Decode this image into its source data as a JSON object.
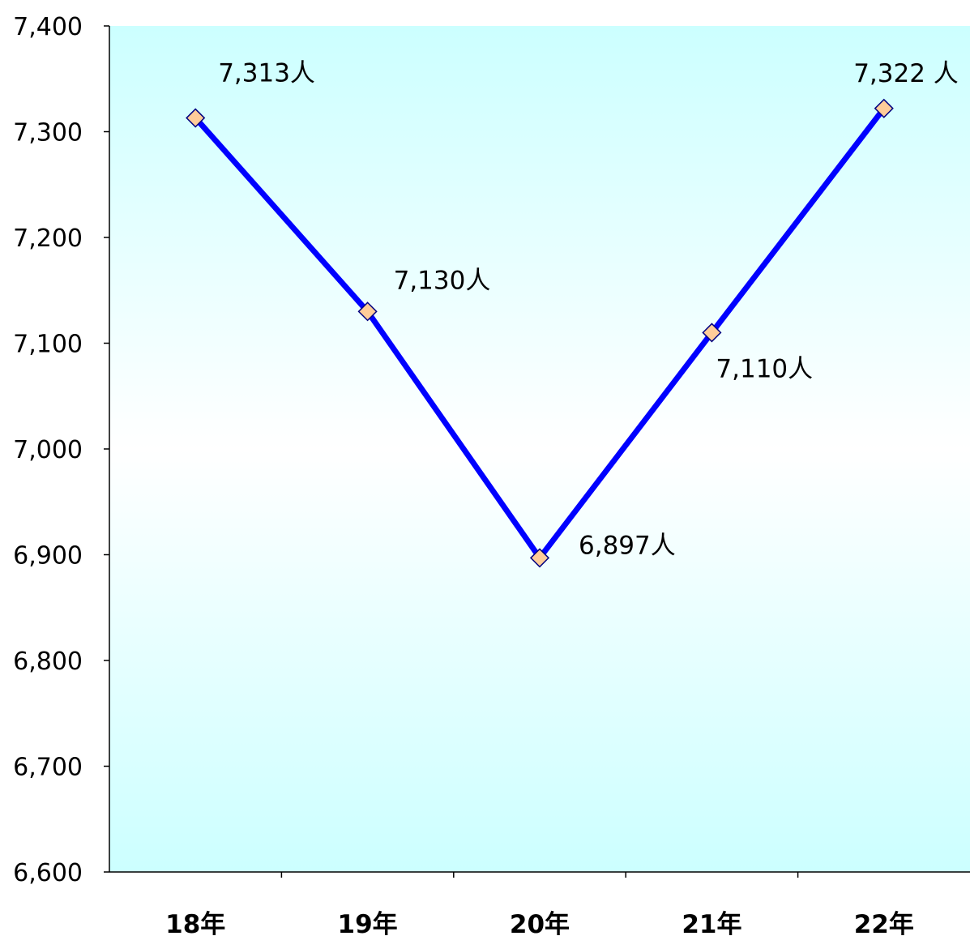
{
  "chart_data": {
    "type": "line",
    "categories": [
      "18年",
      "19年",
      "20年",
      "21年",
      "22年"
    ],
    "series": [
      {
        "values": [
          7313,
          7130,
          6897,
          7110,
          7322
        ],
        "data_labels": [
          "7,313人",
          "7,130人",
          "6,897人",
          "7,110人",
          "7,322 人"
        ]
      }
    ],
    "ylim": [
      6600,
      7400
    ],
    "yticks": [
      6600,
      6700,
      6800,
      6900,
      7000,
      7100,
      7200,
      7300,
      7400
    ],
    "ytick_labels": [
      "6,600",
      "6,700",
      "6,800",
      "6,900",
      "7,000",
      "7,100",
      "7,200",
      "7,300",
      "7,400"
    ],
    "legend": "none",
    "grid": false
  },
  "colors": {
    "line": "#0000ff",
    "marker_fill": "#ffcc99",
    "marker_stroke": "#000080",
    "plot_bg_edge": "#ccffff",
    "plot_bg_center": "#ffffff",
    "axis": "#000000"
  }
}
